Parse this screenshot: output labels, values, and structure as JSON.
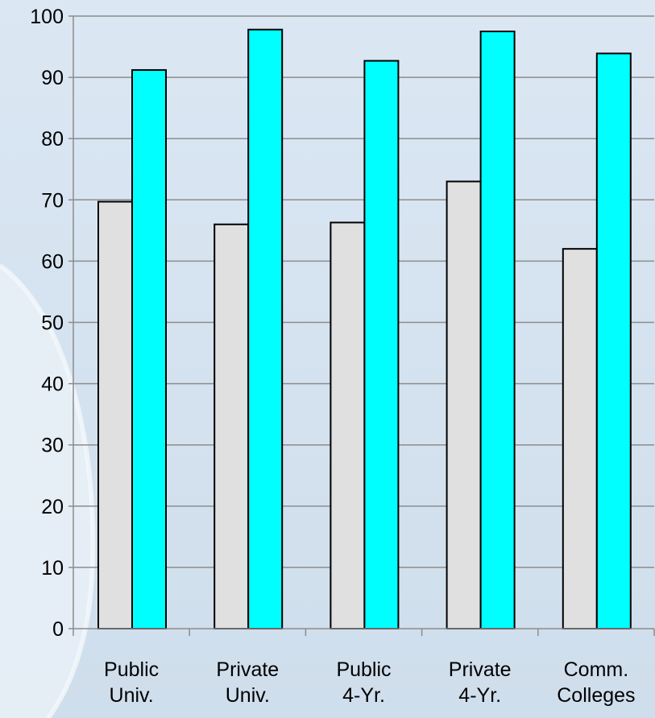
{
  "chart_data": {
    "type": "bar",
    "categories": [
      [
        "Public",
        "Univ."
      ],
      [
        "Private",
        "Univ."
      ],
      [
        "Public",
        "4-Yr."
      ],
      [
        "Private",
        "4-Yr."
      ],
      [
        "Comm.",
        "Colleges"
      ]
    ],
    "series": [
      {
        "values": [
          69.7,
          66.0,
          66.3,
          73.0,
          62.0
        ],
        "color": "#e0e0e0"
      },
      {
        "values": [
          91.2,
          97.8,
          92.7,
          97.5,
          93.9
        ],
        "color": "#00ffff"
      }
    ],
    "ylim": [
      0,
      100
    ],
    "yticks": [
      "0",
      "10",
      "20",
      "30",
      "40",
      "50",
      "60",
      "70",
      "80",
      "90",
      "100"
    ],
    "grid": true,
    "colors": {
      "background": "#d6e3f0",
      "gridline": "#8c8c8c",
      "bar_outline": "#000000",
      "decor_curve": "#eaf1f8"
    }
  }
}
